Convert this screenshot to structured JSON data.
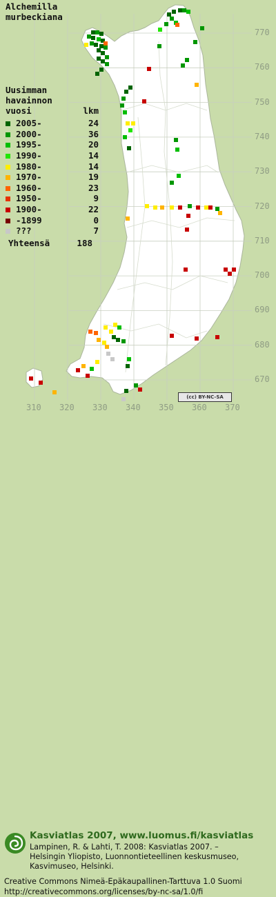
{
  "species": [
    "Alchemilla",
    "murbeckiana"
  ],
  "legend": {
    "title_lines": [
      "Uusimman",
      "havainnon"
    ],
    "period_header": "vuosi",
    "count_header": "lkm",
    "rows": [
      {
        "period": "2005-",
        "count": "24",
        "color": "#006400"
      },
      {
        "period": "2000-",
        "count": "36",
        "color": "#009600"
      },
      {
        "period": "1995-",
        "count": "20",
        "color": "#00be00"
      },
      {
        "period": "1990-",
        "count": "14",
        "color": "#22e600"
      },
      {
        "period": "1980-",
        "count": "14",
        "color": "#ffee00"
      },
      {
        "period": "1970-",
        "count": "19",
        "color": "#ffb400"
      },
      {
        "period": "1960-",
        "count": "23",
        "color": "#ff6400"
      },
      {
        "period": "1950-",
        "count": "9",
        "color": "#e63200"
      },
      {
        "period": "1900-",
        "count": "22",
        "color": "#c80000"
      },
      {
        "period": "-1899",
        "count": "0",
        "color": "#780000"
      },
      {
        "period": "???",
        "count": "7",
        "color": "#c8c8c8"
      }
    ],
    "total_label": "Yhteensä",
    "total_value": "188"
  },
  "y_axis_labels": [
    "770",
    "760",
    "750",
    "740",
    "730",
    "720",
    "710",
    "700",
    "690",
    "680",
    "670"
  ],
  "x_axis_labels": [
    "310",
    "320",
    "330",
    "340",
    "350",
    "360",
    "370"
  ],
  "cc_badge": "(cc) BY-NC-SA",
  "footer": {
    "atlas_title": "Kasviatlas 2007, www.luomus.fi/kasviatlas",
    "citation_lines": [
      "Lampinen, R. & Lahti, T. 2008: Kasviatlas 2007. –",
      "Helsingin Yliopisto, Luonnontieteellinen keskusmuseo,",
      "Kasvimuseo, Helsinki."
    ],
    "license_lines": [
      "Creative Commons Nimeä-Epäkaupallinen-Tarttuva 1.0 Suomi",
      "http://creativecommons.org/licenses/by-nc-sa/1.0/fi"
    ]
  },
  "colors": {
    "background": "#c9dcaa",
    "land": "#ffffff",
    "grid": "#c8cfc0",
    "atlas_title": "#2f6a1e"
  }
}
